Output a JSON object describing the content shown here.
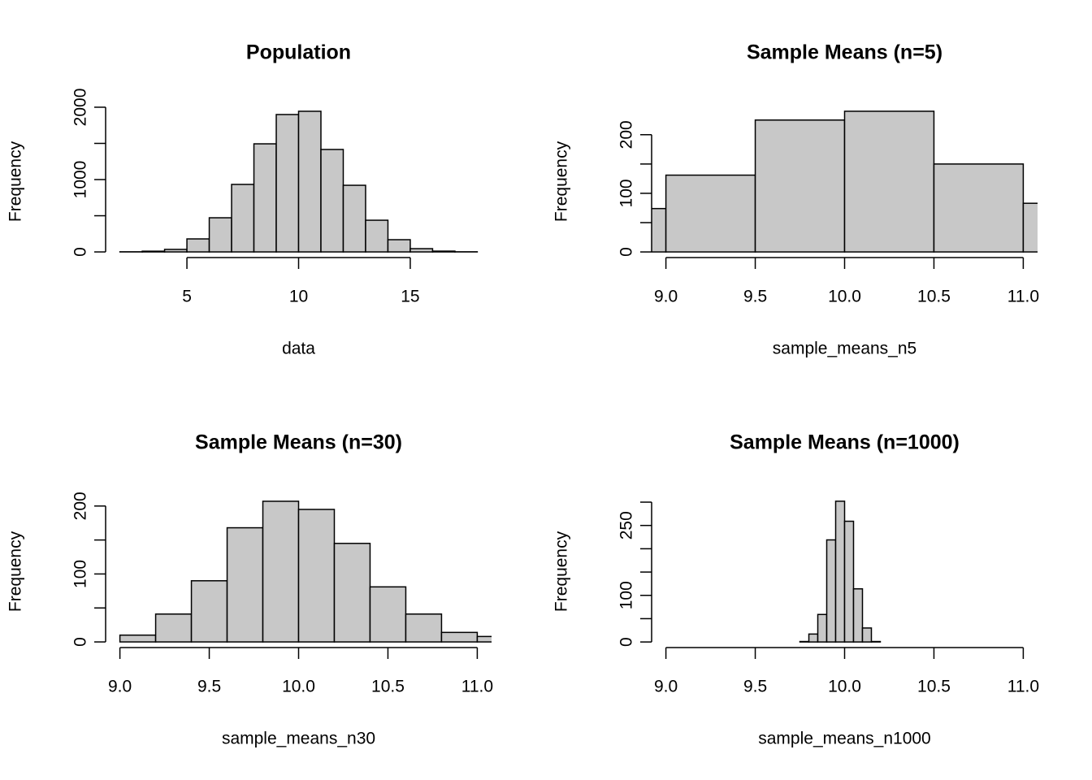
{
  "chart_data": [
    {
      "type": "histogram",
      "title": "Population",
      "xlabel": "data",
      "ylabel": "Frequency",
      "color": "#c8c8c8",
      "bins": [
        2,
        3,
        4,
        5,
        6,
        7,
        8,
        9,
        10,
        11,
        12,
        13,
        14,
        15,
        16,
        17,
        18
      ],
      "values": [
        2,
        10,
        35,
        180,
        472,
        933,
        1494,
        1899,
        1944,
        1416,
        921,
        438,
        169,
        45,
        11,
        2
      ],
      "xlim": [
        1.36,
        18.64
      ],
      "ylim": [
        -78,
        2022
      ],
      "xticks": [
        5,
        10,
        15
      ],
      "yticks": [
        0,
        1000,
        2000
      ],
      "yticks_unlabeled": [
        500,
        1500
      ]
    },
    {
      "type": "histogram",
      "title": "Sample Means (n=5)",
      "xlabel": "sample_means_n5",
      "ylabel": "Frequency",
      "color": "#c8c8c8",
      "bins": [
        8.5,
        9.0,
        9.5,
        10.0,
        10.5,
        11.0,
        11.5
      ],
      "values": [
        74,
        131,
        225,
        240,
        150,
        83
      ],
      "xlim": [
        8.92,
        11.08
      ],
      "ylim": [
        -9.6,
        249.6
      ],
      "xticks": [
        {
          "value": 9,
          "label": "9.0"
        },
        9.5,
        {
          "value": 10,
          "label": "10.0"
        },
        10.5,
        {
          "value": 11,
          "label": "11.0"
        }
      ],
      "yticks": [
        0,
        100,
        200
      ],
      "yticks_unlabeled": [
        50,
        150
      ]
    },
    {
      "type": "histogram",
      "title": "Sample Means (n=30)",
      "xlabel": "sample_means_n30",
      "ylabel": "Frequency",
      "color": "#c8c8c8",
      "bins": [
        9.0,
        9.2,
        9.4,
        9.6,
        9.8,
        10.0,
        10.2,
        10.4,
        10.6,
        10.8,
        11.0,
        11.2
      ],
      "values": [
        10,
        41,
        90,
        168,
        207,
        195,
        145,
        81,
        41,
        14,
        8
      ],
      "xlim": [
        8.92,
        11.08
      ],
      "ylim": [
        -8.3,
        215.3
      ],
      "xticks": [
        {
          "value": 9,
          "label": "9.0"
        },
        9.5,
        {
          "value": 10,
          "label": "10.0"
        },
        10.5,
        {
          "value": 11,
          "label": "11.0"
        }
      ],
      "yticks": [
        0,
        100,
        200
      ],
      "yticks_unlabeled": [
        50,
        150
      ]
    },
    {
      "type": "histogram",
      "title": "Sample Means (n=1000)",
      "xlabel": "sample_means_n1000",
      "ylabel": "Frequency",
      "color": "#c8c8c8",
      "bins": [
        9.75,
        9.8,
        9.85,
        9.9,
        9.95,
        10.0,
        10.05,
        10.1,
        10.15,
        10.2
      ],
      "values": [
        1,
        17,
        59,
        219,
        302,
        259,
        114,
        30,
        1
      ],
      "xlim": [
        8.92,
        11.08
      ],
      "ylim": [
        -12,
        314
      ],
      "xticks": [
        {
          "value": 9,
          "label": "9.0"
        },
        9.5,
        {
          "value": 10,
          "label": "10.0"
        },
        10.5,
        {
          "value": 11,
          "label": "11.0"
        }
      ],
      "yticks": [
        0,
        100,
        250
      ],
      "yticks_unlabeled": [
        50,
        150,
        200,
        300
      ]
    }
  ]
}
